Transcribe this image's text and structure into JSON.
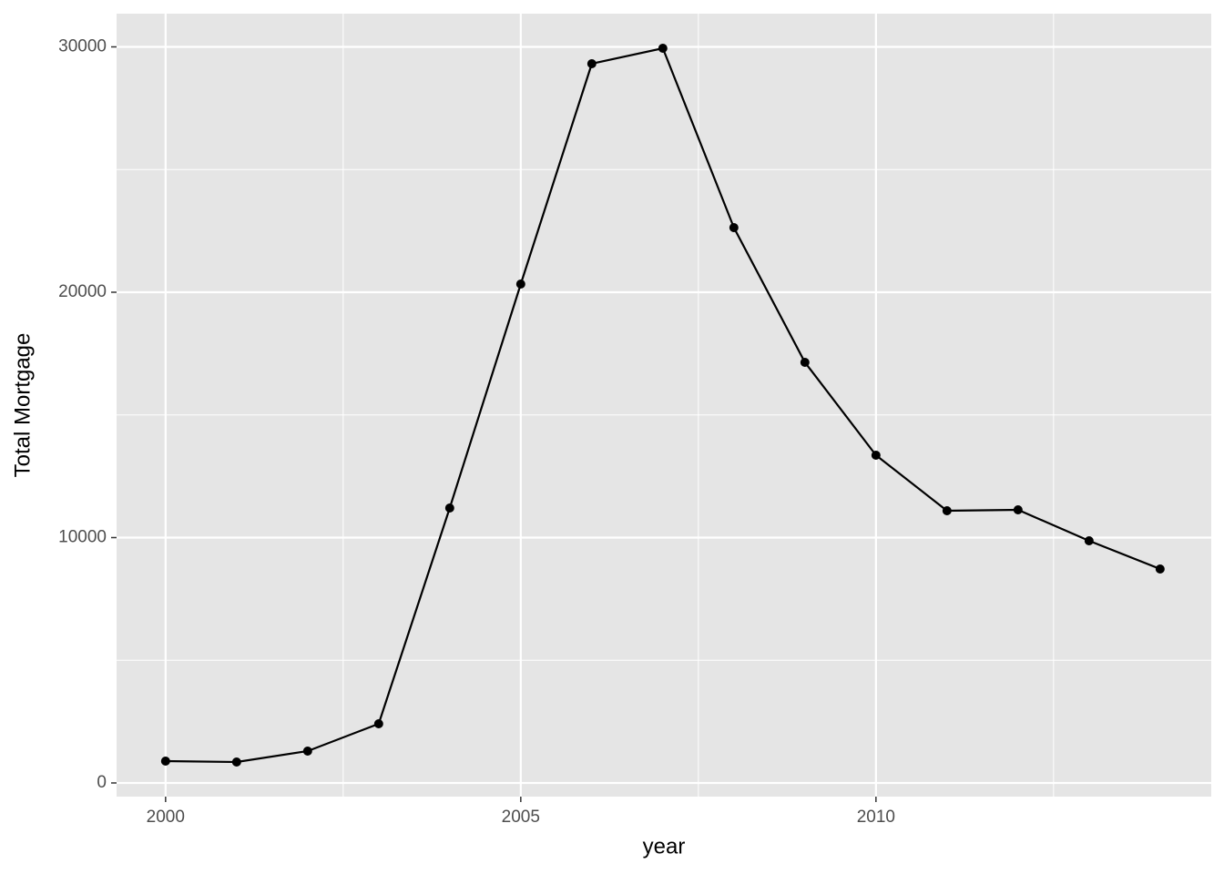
{
  "chart_data": {
    "type": "line",
    "x_label": "year",
    "y_label": "Total Mortgage",
    "x": [
      2000,
      2001,
      2002,
      2003,
      2004,
      2005,
      2006,
      2007,
      2008,
      2009,
      2010,
      2011,
      2012,
      2013,
      2014
    ],
    "series": [
      {
        "color": "#000000",
        "values": [
          890,
          853,
          1299,
          2412,
          11206,
          20334,
          29314,
          29944,
          22635,
          17143,
          13358,
          11095,
          11132,
          9870,
          8720
        ]
      }
    ],
    "xlim": [
      1999.31,
      2014.72
    ],
    "ylim": [
      -557,
      31354
    ],
    "xticks": [
      2000,
      2005,
      2010
    ],
    "yticks": [
      0,
      10000,
      20000,
      30000
    ],
    "minor_xticks": [
      2002.5,
      2007.5,
      2012.5
    ],
    "minor_yticks": [
      5000,
      15000,
      25000
    ],
    "grid": true,
    "markers": true
  }
}
